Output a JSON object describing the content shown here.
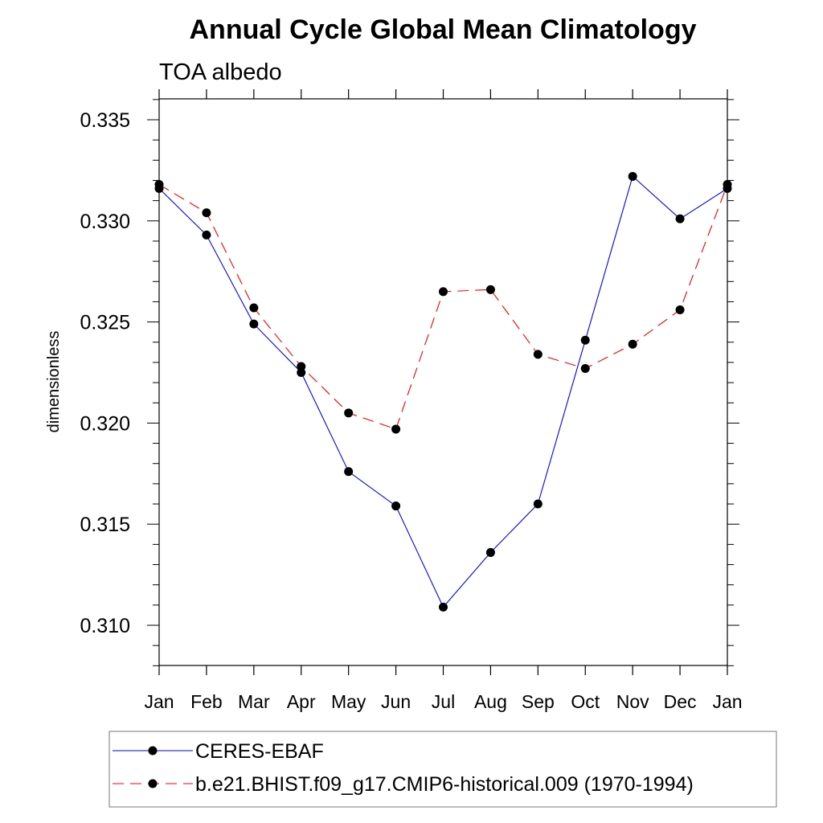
{
  "chart_data": {
    "type": "line",
    "title": "Annual Cycle Global Mean Climatology",
    "subtitle": "TOA albedo",
    "xlabel": "",
    "ylabel": "dimensionless",
    "categories": [
      "Jan",
      "Feb",
      "Mar",
      "Apr",
      "May",
      "Jun",
      "Jul",
      "Aug",
      "Sep",
      "Oct",
      "Nov",
      "Dec",
      "Jan"
    ],
    "ylim": [
      0.308,
      0.336
    ],
    "yticks": [
      "0.310",
      "0.315",
      "0.320",
      "0.325",
      "0.330",
      "0.335"
    ],
    "ytick_values": [
      0.31,
      0.315,
      0.32,
      0.325,
      0.33,
      0.335
    ],
    "legend_position": "bottom",
    "series": [
      {
        "name": "CERES-EBAF",
        "color": "#0000ff",
        "dash": "solid",
        "marker": "filled-circle",
        "values": [
          0.3316,
          0.3293,
          0.3249,
          0.3225,
          0.3176,
          0.3159,
          0.3109,
          0.3136,
          0.316,
          0.3241,
          0.3322,
          0.3301,
          0.3316
        ]
      },
      {
        "name": "b.e21.BHIST.f09_g17.CMIP6-historical.009 (1970-1994)",
        "color": "#ff0000",
        "dash": "dashed",
        "marker": "filled-circle",
        "values": [
          0.3318,
          0.3304,
          0.3257,
          0.3228,
          0.3205,
          0.3197,
          0.3265,
          0.3266,
          0.3234,
          0.3227,
          0.3239,
          0.3256,
          0.3318
        ]
      }
    ]
  }
}
